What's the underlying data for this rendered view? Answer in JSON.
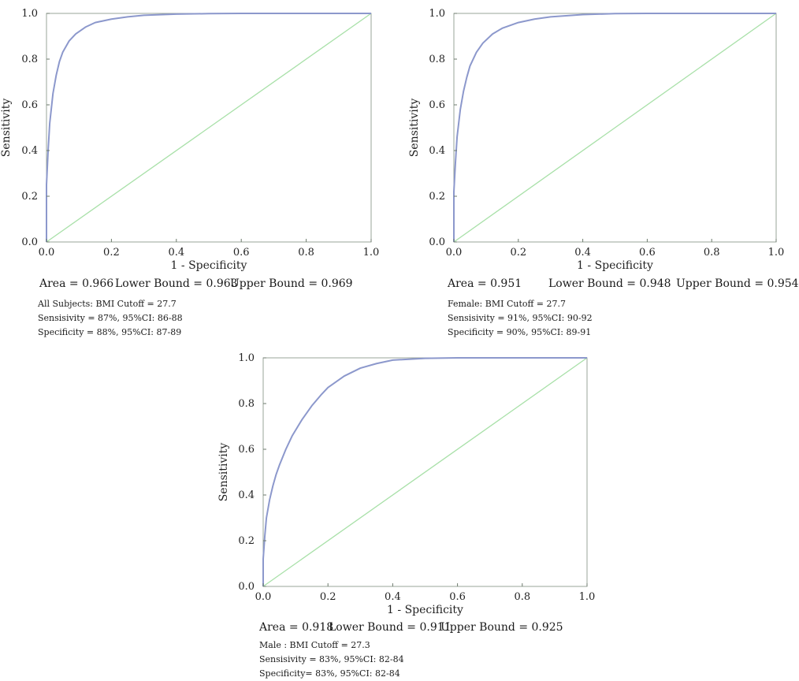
{
  "chart_data": [
    {
      "type": "line",
      "xlabel": "1 - Specificity",
      "ylabel": "Sensitivity",
      "xlim": [
        0,
        1
      ],
      "ylim": [
        0,
        1
      ],
      "xticks": [
        "0.0",
        "0.2",
        "0.4",
        "0.6",
        "0.8",
        "1.0"
      ],
      "yticks": [
        "0.0",
        "0.2",
        "0.4",
        "0.6",
        "0.8",
        "1.0"
      ],
      "grid": false,
      "colors": {
        "roc": "#8c98cc",
        "reference": "#a8e0a8"
      },
      "series": [
        {
          "x": [
            0,
            0.0,
            0.005,
            0.01,
            0.02,
            0.03,
            0.04,
            0.05,
            0.07,
            0.09,
            0.12,
            0.15,
            0.2,
            0.25,
            0.3,
            0.4,
            0.5,
            0.6,
            0.8,
            1.0
          ],
          "y": [
            0,
            0.25,
            0.4,
            0.52,
            0.65,
            0.73,
            0.79,
            0.83,
            0.88,
            0.91,
            0.94,
            0.96,
            0.975,
            0.985,
            0.992,
            0.997,
            0.999,
            1.0,
            1.0,
            1.0
          ]
        },
        {
          "x": [
            0,
            1
          ],
          "y": [
            0,
            1
          ]
        }
      ],
      "area": "Area = 0.966",
      "lower": "Lower Bound = 0.963",
      "upper": "Upper Bound = 0.969",
      "notes": [
        "All Subjects: BMI Cutoff = 27.7",
        "Sensisivity = 87%, 95%CI: 86-88",
        "Specificity = 88%, 95%CI: 87-89"
      ]
    },
    {
      "type": "line",
      "xlabel": "1 - Specificity",
      "ylabel": "Sensitivity",
      "xlim": [
        0,
        1
      ],
      "ylim": [
        0,
        1
      ],
      "xticks": [
        "0.0",
        "0.2",
        "0.4",
        "0.6",
        "0.8",
        "1.0"
      ],
      "yticks": [
        "0.0",
        "0.2",
        "0.4",
        "0.6",
        "0.8",
        "1.0"
      ],
      "grid": false,
      "colors": {
        "roc": "#8c98cc",
        "reference": "#a8e0a8"
      },
      "series": [
        {
          "x": [
            0,
            0.0,
            0.005,
            0.01,
            0.02,
            0.03,
            0.04,
            0.05,
            0.07,
            0.09,
            0.12,
            0.15,
            0.2,
            0.25,
            0.3,
            0.4,
            0.5,
            0.6,
            0.8,
            1.0
          ],
          "y": [
            0,
            0.22,
            0.35,
            0.46,
            0.58,
            0.66,
            0.72,
            0.77,
            0.83,
            0.87,
            0.91,
            0.935,
            0.96,
            0.975,
            0.985,
            0.995,
            0.999,
            1.0,
            1.0,
            1.0
          ]
        },
        {
          "x": [
            0,
            1
          ],
          "y": [
            0,
            1
          ]
        }
      ],
      "area": "Area = 0.951",
      "lower": "Lower Bound = 0.948",
      "upper": "Upper Bound = 0.954",
      "notes": [
        "Female: BMI Cutoff = 27.7",
        "Sensisivity = 91%, 95%CI: 90-92",
        "Specificity = 90%, 95%CI: 89-91"
      ]
    },
    {
      "type": "line",
      "xlabel": "1 - Specificity",
      "ylabel": "Sensitivity",
      "xlim": [
        0,
        1
      ],
      "ylim": [
        0,
        1
      ],
      "xticks": [
        "0.0",
        "0.2",
        "0.4",
        "0.6",
        "0.8",
        "1.0"
      ],
      "yticks": [
        "0.0",
        "0.2",
        "0.4",
        "0.6",
        "0.8",
        "1.0"
      ],
      "grid": false,
      "colors": {
        "roc": "#8c98cc",
        "reference": "#a8e0a8"
      },
      "series": [
        {
          "x": [
            0,
            0.0,
            0.005,
            0.01,
            0.02,
            0.03,
            0.04,
            0.05,
            0.07,
            0.09,
            0.12,
            0.15,
            0.18,
            0.2,
            0.25,
            0.3,
            0.35,
            0.4,
            0.5,
            0.6,
            0.8,
            1.0
          ],
          "y": [
            0,
            0.12,
            0.22,
            0.3,
            0.38,
            0.44,
            0.49,
            0.53,
            0.6,
            0.66,
            0.73,
            0.79,
            0.84,
            0.87,
            0.92,
            0.955,
            0.975,
            0.99,
            0.998,
            1.0,
            1.0,
            1.0
          ]
        },
        {
          "x": [
            0,
            1
          ],
          "y": [
            0,
            1
          ]
        }
      ],
      "area": "Area = 0.918",
      "lower": "Lower Bound = 0.911",
      "upper": "Upper Bound = 0.925",
      "notes": [
        "Male : BMI Cutoff = 27.3",
        "Sensisivity = 83%, 95%CI: 82-84",
        "Specificity= 83%, 95%CI: 82-84"
      ]
    }
  ]
}
